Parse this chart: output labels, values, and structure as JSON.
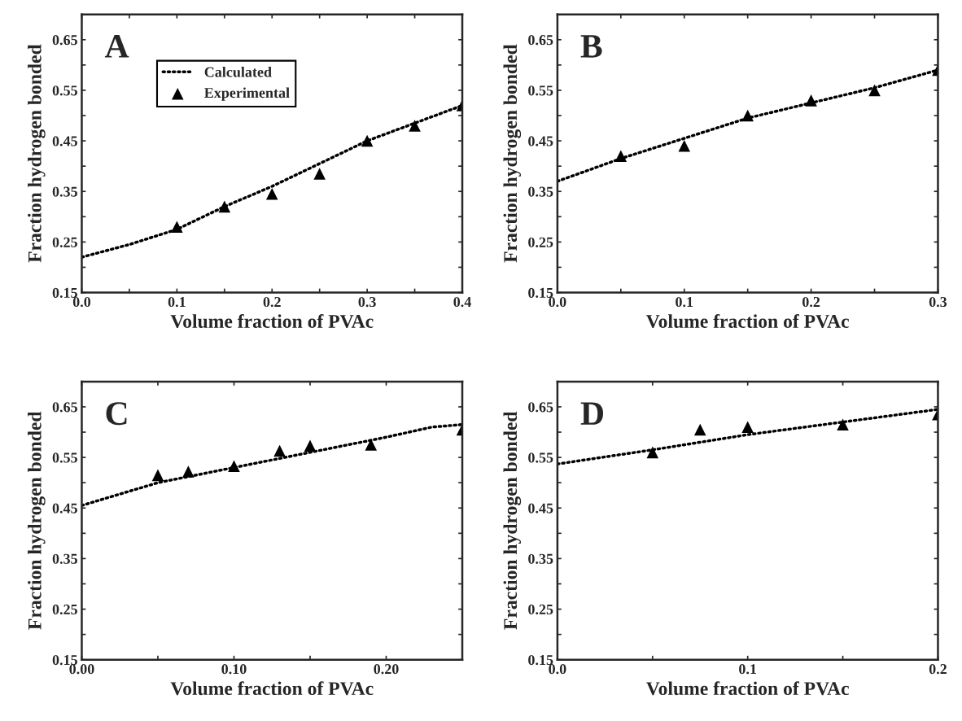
{
  "chart_data": [
    {
      "type": "line",
      "xlabel": "Volume fraction of PVAc",
      "ylabel": "Fraction hydrogen bonded",
      "annotations": [
        "A"
      ],
      "legend": "top",
      "xlim": [
        0.0,
        0.4
      ],
      "ylim": [
        0.15,
        0.7
      ],
      "xticks": [
        {
          "value": 0.0,
          "label": "0.0"
        },
        {
          "value": 0.05,
          "label": null
        },
        {
          "value": 0.1,
          "label": "0.1"
        },
        {
          "value": 0.15,
          "label": null
        },
        {
          "value": 0.2,
          "label": "0.2"
        },
        {
          "value": 0.25,
          "label": null
        },
        {
          "value": 0.3,
          "label": "0.3"
        },
        {
          "value": 0.35,
          "label": null
        },
        {
          "value": 0.4,
          "label": "0.4"
        }
      ],
      "yticks": [
        0.15,
        {
          "value": 0.2,
          "label": null
        },
        0.25,
        {
          "value": 0.3,
          "label": null
        },
        0.35,
        {
          "value": 0.4,
          "label": null
        },
        0.45,
        {
          "value": 0.5,
          "label": null
        },
        0.55,
        {
          "value": 0.6,
          "label": null
        },
        0.65
      ],
      "series": [
        {
          "name": "Calculated",
          "line_style": "dotted",
          "color": "#000000",
          "x": [
            0.0,
            0.05,
            0.1,
            0.15,
            0.2,
            0.25,
            0.3,
            0.35,
            0.4
          ],
          "values": [
            0.22,
            0.245,
            0.275,
            0.32,
            0.36,
            0.405,
            0.45,
            0.485,
            0.52
          ]
        },
        {
          "name": "Experimental",
          "type": "scatter",
          "marker": "triangle",
          "color": "#000000",
          "x": [
            0.1,
            0.15,
            0.2,
            0.25,
            0.3,
            0.35,
            0.4
          ],
          "values": [
            0.28,
            0.32,
            0.345,
            0.385,
            0.45,
            0.48,
            0.52
          ]
        }
      ]
    },
    {
      "type": "line",
      "xlabel": "Volume fraction of PVAc",
      "ylabel": "Fraction hydrogen bonded",
      "annotations": [
        "B"
      ],
      "xlim": [
        0.0,
        0.3
      ],
      "ylim": [
        0.15,
        0.7
      ],
      "xticks": [
        {
          "value": 0.0,
          "label": "0.0"
        },
        {
          "value": 0.05,
          "label": null
        },
        {
          "value": 0.1,
          "label": "0.1"
        },
        {
          "value": 0.15,
          "label": null
        },
        {
          "value": 0.2,
          "label": "0.2"
        },
        {
          "value": 0.25,
          "label": null
        },
        {
          "value": 0.3,
          "label": "0.3"
        }
      ],
      "yticks": [
        0.15,
        {
          "value": 0.2,
          "label": null
        },
        0.25,
        {
          "value": 0.3,
          "label": null
        },
        0.35,
        {
          "value": 0.4,
          "label": null
        },
        0.45,
        {
          "value": 0.5,
          "label": null
        },
        0.55,
        {
          "value": 0.6,
          "label": null
        },
        0.65
      ],
      "series": [
        {
          "line_style": "dotted",
          "color": "#000000",
          "x": [
            0.0,
            0.05,
            0.1,
            0.15,
            0.2,
            0.25,
            0.3
          ],
          "values": [
            0.37,
            0.415,
            0.455,
            0.495,
            0.525,
            0.555,
            0.59
          ]
        },
        {
          "type": "scatter",
          "marker": "triangle",
          "color": "#000000",
          "x": [
            0.05,
            0.1,
            0.15,
            0.2,
            0.25,
            0.3
          ],
          "values": [
            0.42,
            0.44,
            0.5,
            0.53,
            0.55,
            0.59
          ]
        }
      ]
    },
    {
      "type": "line",
      "xlabel": "Volume fraction of PVAc",
      "ylabel": "Fraction hydrogen bonded",
      "annotations": [
        "C"
      ],
      "xlim": [
        0.0,
        0.25
      ],
      "ylim": [
        0.15,
        0.7
      ],
      "xticks": [
        {
          "value": 0.0,
          "label": "0.00"
        },
        {
          "value": 0.05,
          "label": null
        },
        {
          "value": 0.1,
          "label": "0.10"
        },
        {
          "value": 0.15,
          "label": null
        },
        {
          "value": 0.2,
          "label": "0.20"
        }
      ],
      "yticks": [
        0.15,
        {
          "value": 0.2,
          "label": null
        },
        0.25,
        {
          "value": 0.3,
          "label": null
        },
        0.35,
        {
          "value": 0.4,
          "label": null
        },
        0.45,
        {
          "value": 0.5,
          "label": null
        },
        0.55,
        {
          "value": 0.6,
          "label": null
        },
        0.65
      ],
      "series": [
        {
          "line_style": "dotted",
          "color": "#000000",
          "x": [
            0.0,
            0.05,
            0.1,
            0.15,
            0.2,
            0.23,
            0.25
          ],
          "values": [
            0.455,
            0.5,
            0.53,
            0.56,
            0.59,
            0.61,
            0.615
          ]
        },
        {
          "type": "scatter",
          "marker": "triangle",
          "color": "#000000",
          "x": [
            0.05,
            0.07,
            0.1,
            0.13,
            0.15,
            0.19,
            0.25
          ],
          "values": [
            0.515,
            0.522,
            0.533,
            0.563,
            0.573,
            0.575,
            0.605
          ]
        }
      ]
    },
    {
      "type": "line",
      "xlabel": "Volume fraction of PVAc",
      "ylabel": "Fraction hydrogen bonded",
      "annotations": [
        "D"
      ],
      "xlim": [
        0.0,
        0.2
      ],
      "ylim": [
        0.15,
        0.7
      ],
      "xticks": [
        {
          "value": 0.0,
          "label": "0.0"
        },
        {
          "value": 0.05,
          "label": null
        },
        {
          "value": 0.1,
          "label": "0.1"
        },
        {
          "value": 0.15,
          "label": null
        },
        {
          "value": 0.2,
          "label": "0.2"
        }
      ],
      "yticks": [
        0.15,
        {
          "value": 0.2,
          "label": null
        },
        0.25,
        {
          "value": 0.3,
          "label": null
        },
        0.35,
        {
          "value": 0.4,
          "label": null
        },
        0.45,
        {
          "value": 0.5,
          "label": null
        },
        0.55,
        {
          "value": 0.6,
          "label": null
        },
        0.65
      ],
      "series": [
        {
          "line_style": "dotted",
          "color": "#000000",
          "x": [
            0.0,
            0.05,
            0.1,
            0.15,
            0.2
          ],
          "values": [
            0.537,
            0.565,
            0.595,
            0.62,
            0.645
          ]
        },
        {
          "type": "scatter",
          "marker": "triangle",
          "color": "#000000",
          "x": [
            0.05,
            0.075,
            0.1,
            0.15,
            0.2
          ],
          "values": [
            0.56,
            0.605,
            0.61,
            0.615,
            0.635
          ]
        }
      ]
    }
  ]
}
